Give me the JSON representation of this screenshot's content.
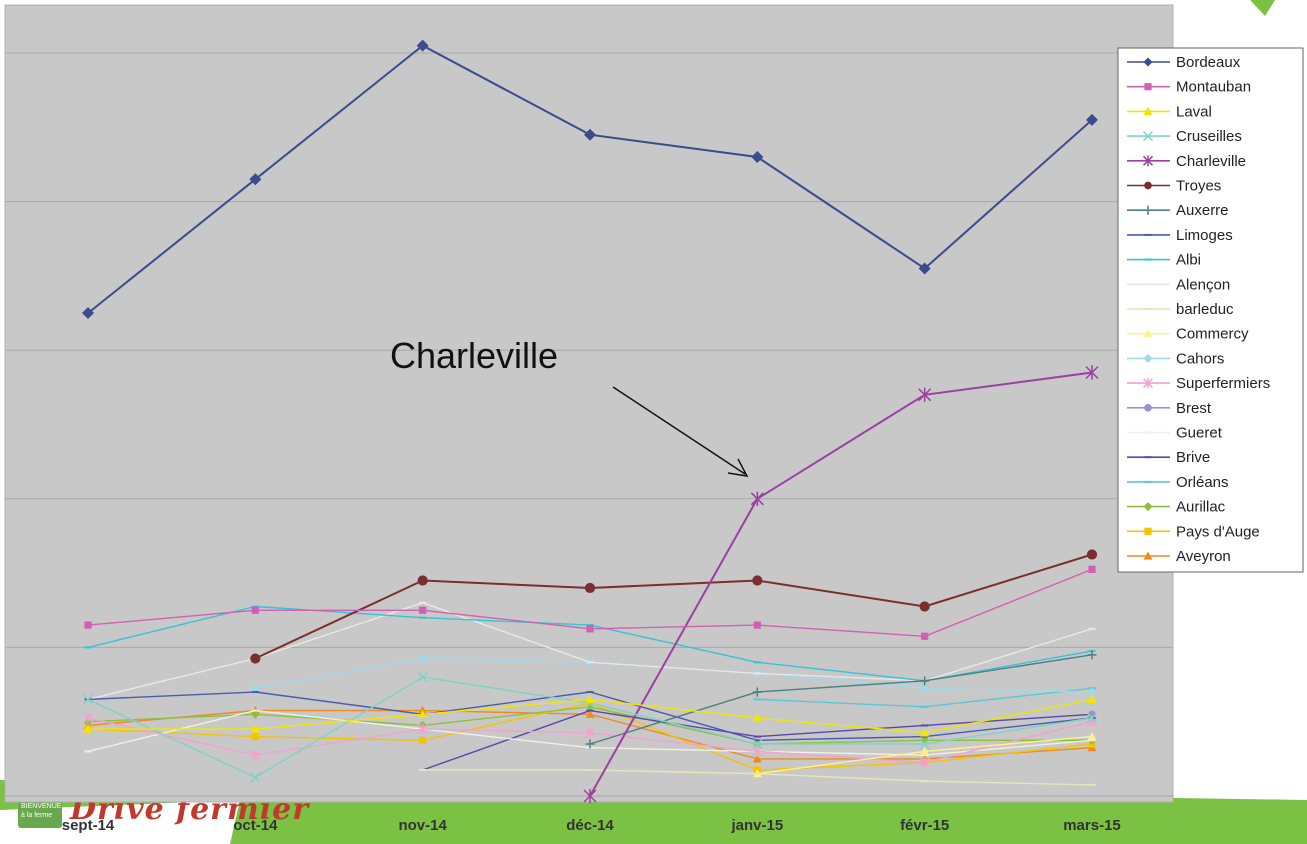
{
  "brand": {
    "logo_small_text": "BIENVENUE à la ferme",
    "logo_script_text": "Drive fermier",
    "accent_green": "#7bc143",
    "logo_red": "#c0392b"
  },
  "chart_data": {
    "type": "line",
    "title": "",
    "xlabel": "",
    "ylabel": "",
    "ylim": [
      0,
      100
    ],
    "grid": true,
    "legend_position": "right",
    "categories": [
      "sept-14",
      "oct-14",
      "nov-14",
      "déc-14",
      "janv-15",
      "févr-15",
      "mars-15"
    ],
    "annotation": {
      "text": "Charleville",
      "target_series": "Charleville",
      "target_category": "janv-15"
    },
    "series": [
      {
        "name": "Bordeaux",
        "color": "#3b4b8f",
        "marker": "diamond",
        "values": [
          65,
          83,
          101,
          89,
          86,
          71,
          91
        ]
      },
      {
        "name": "Montauban",
        "color": "#d15fb2",
        "marker": "square",
        "values": [
          23,
          25,
          25,
          22.5,
          23,
          21.5,
          30.5
        ]
      },
      {
        "name": "Laval",
        "color": "#f2e600",
        "marker": "triangle",
        "values": [
          9,
          9,
          11,
          13,
          10.5,
          8.5,
          13
        ]
      },
      {
        "name": "Cruseilles",
        "color": "#7fd3c6",
        "marker": "x",
        "values": [
          13,
          2.5,
          16,
          12.5,
          7,
          7,
          10.5
        ]
      },
      {
        "name": "Charleville",
        "color": "#9b3fa3",
        "marker": "star",
        "values": [
          null,
          null,
          null,
          0,
          40,
          54,
          57
        ]
      },
      {
        "name": "Troyes",
        "color": "#7a2e2e",
        "marker": "circle",
        "values": [
          null,
          18.5,
          29,
          28,
          29,
          25.5,
          32.5
        ]
      },
      {
        "name": "Auxerre",
        "color": "#4f7f7f",
        "marker": "plus",
        "values": [
          null,
          null,
          null,
          7,
          14,
          15.5,
          19
        ]
      },
      {
        "name": "Limoges",
        "color": "#4a5bb0",
        "marker": "dash",
        "values": [
          13,
          14,
          11,
          14,
          7.5,
          8,
          10.5
        ]
      },
      {
        "name": "Albi",
        "color": "#35c3d6",
        "marker": "dash",
        "values": [
          20,
          25.5,
          24,
          23,
          18,
          15.5,
          19.5
        ]
      },
      {
        "name": "Alençon",
        "color": "#e8e8e8",
        "marker": "dash",
        "values": [
          13,
          18.5,
          26,
          18,
          16.5,
          15.5,
          22.5
        ]
      },
      {
        "name": "barleduc",
        "color": "#e6e6b8",
        "marker": "dash",
        "values": [
          null,
          null,
          3.5,
          3.5,
          3,
          2,
          1.5
        ]
      },
      {
        "name": "Commercy",
        "color": "#fff28a",
        "marker": "triangle",
        "values": [
          null,
          null,
          null,
          null,
          3,
          6,
          8
        ]
      },
      {
        "name": "Cahors",
        "color": "#9fd9ec",
        "marker": "diamond",
        "values": [
          null,
          14.5,
          18.5,
          18,
          16.5,
          14.5,
          14
        ]
      },
      {
        "name": "Superfermiers",
        "color": "#f2a1d0",
        "marker": "star",
        "values": [
          10.5,
          5.5,
          9,
          8.5,
          6,
          4.5,
          10
        ]
      },
      {
        "name": "Brest",
        "color": "#9c8fd6",
        "marker": "circle",
        "values": [
          null,
          null,
          null,
          null,
          null,
          null,
          11
        ]
      },
      {
        "name": "Gueret",
        "color": "#f0f0e6",
        "marker": "dash",
        "values": [
          6,
          11.5,
          9,
          6.5,
          6,
          5.5,
          7.5
        ]
      },
      {
        "name": "Brive",
        "color": "#5a47a8",
        "marker": "dash",
        "values": [
          null,
          null,
          3.5,
          11.5,
          8,
          9.5,
          11
        ]
      },
      {
        "name": "Orléans",
        "color": "#57c9d4",
        "marker": "dash",
        "values": [
          null,
          null,
          null,
          null,
          13,
          12,
          14.5
        ]
      },
      {
        "name": "Aurillac",
        "color": "#8fbf3f",
        "marker": "diamond",
        "values": [
          10,
          11,
          9.5,
          12,
          7,
          7.5,
          7.5
        ]
      },
      {
        "name": "Pays d'Auge",
        "color": "#f5c400",
        "marker": "square",
        "values": [
          9,
          8,
          7.5,
          12.5,
          3.5,
          4.5,
          7
        ]
      },
      {
        "name": "Aveyron",
        "color": "#f08a1d",
        "marker": "triangle",
        "values": [
          9.5,
          11.5,
          11.5,
          11,
          5,
          5,
          6.5
        ]
      }
    ]
  }
}
